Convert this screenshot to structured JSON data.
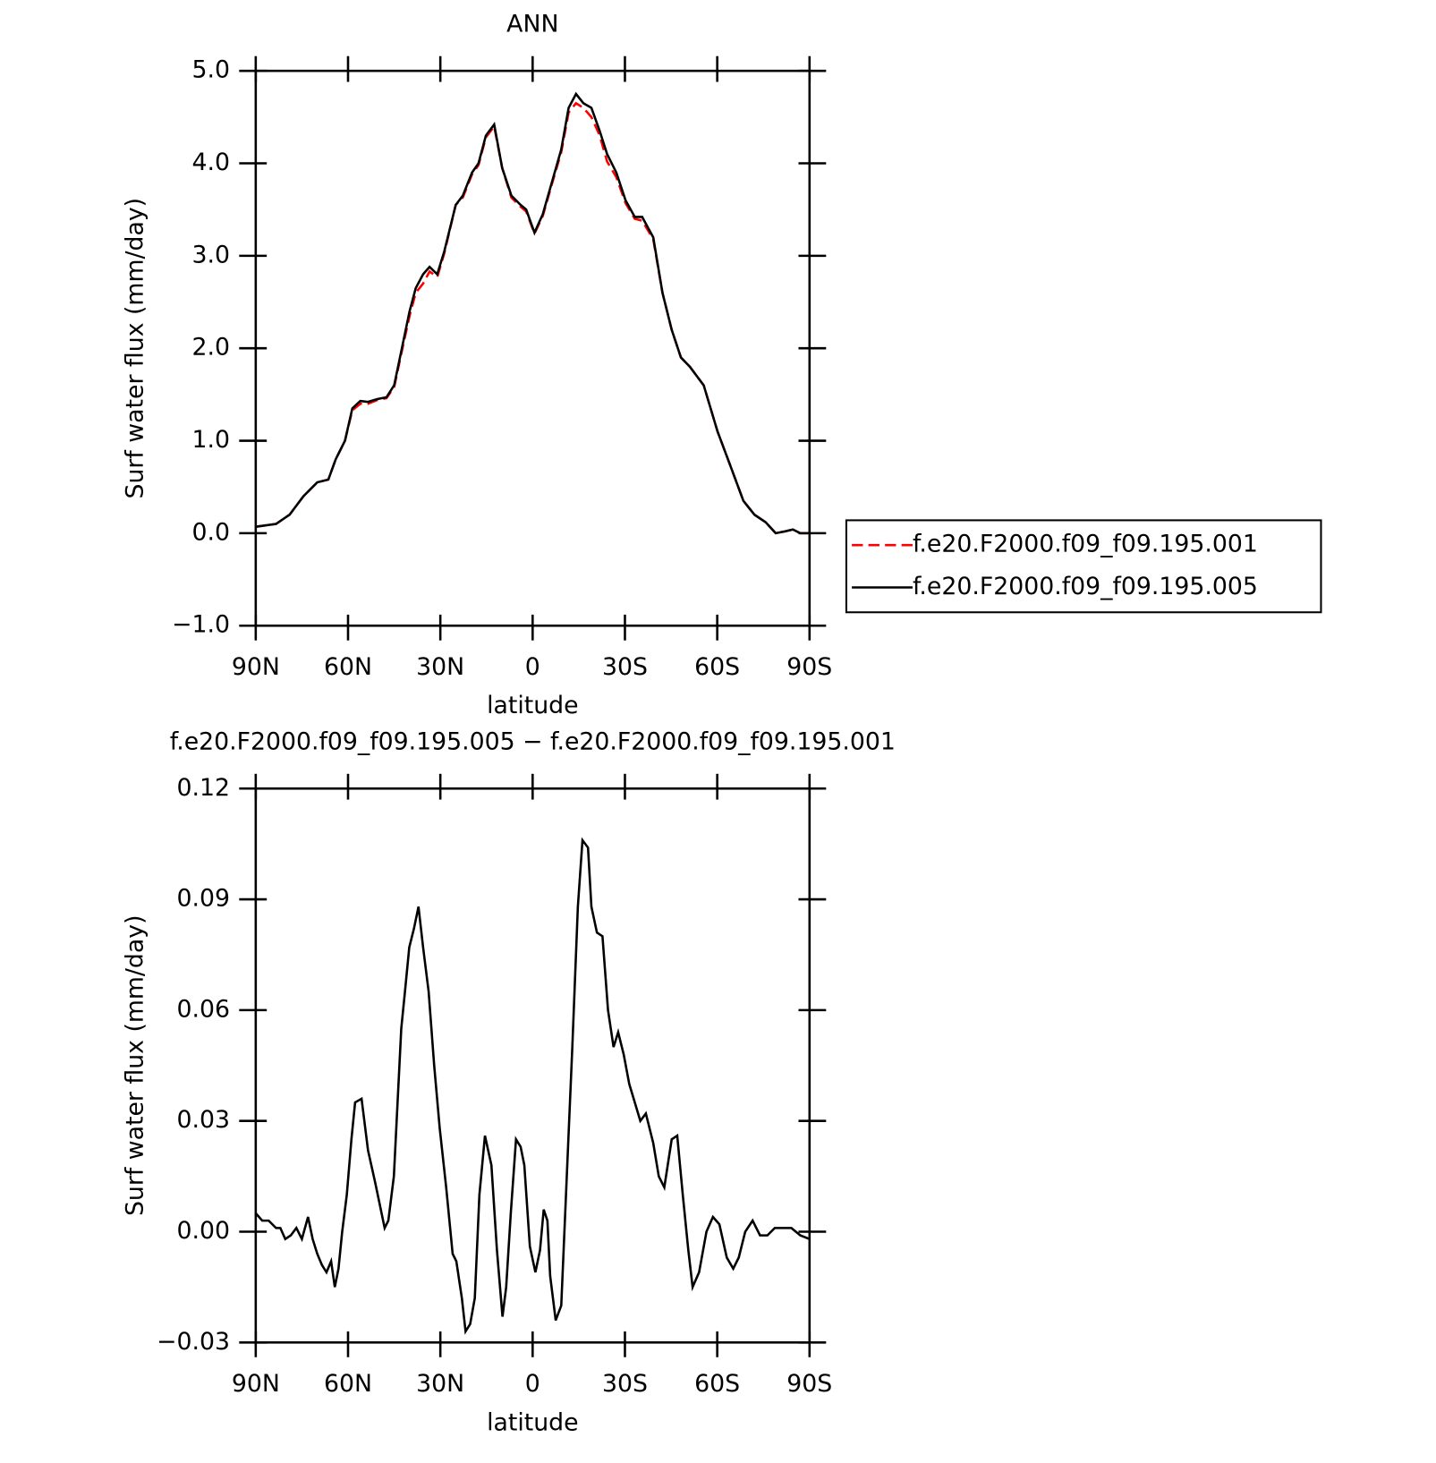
{
  "chart_data": [
    {
      "type": "line",
      "title": "ANN",
      "xlabel": "latitude",
      "ylabel": "Surf water flux (mm/day)",
      "x": [
        90,
        83.4,
        79,
        74.5,
        70,
        66.4,
        64,
        61,
        58.6,
        56,
        53.5,
        50.5,
        47.5,
        45,
        42.5,
        40,
        38,
        35.6,
        33.5,
        31,
        28.7,
        25,
        22.7,
        19.7,
        17.6,
        15.2,
        12.5,
        9.9,
        6.9,
        3.9,
        2.1,
        -0.6,
        -3.3,
        -6.3,
        -9.3,
        -11.7,
        -14.1,
        -16.5,
        -19.1,
        -21.8,
        -24.2,
        -27.2,
        -30.2,
        -33.2,
        -35.6,
        -39.2,
        -42.2,
        -45.2,
        -48.2,
        -51.1,
        -55.6,
        -60.1,
        -64.6,
        -68.5,
        -72.1,
        -75.7,
        -79,
        -82,
        -84.6,
        -87,
        -90
      ],
      "series": [
        {
          "name": "f.e20.F2000.f09_f09.195.001",
          "color": "#ff0000",
          "dash": "dashed",
          "values": [
            0.07,
            0.1,
            0.2,
            0.4,
            0.55,
            0.58,
            0.8,
            1.0,
            1.33,
            1.4,
            1.4,
            1.44,
            1.46,
            1.58,
            1.97,
            2.35,
            2.6,
            2.7,
            2.83,
            2.77,
            3.03,
            3.55,
            3.63,
            3.88,
            3.98,
            4.28,
            4.4,
            3.95,
            3.63,
            3.53,
            3.48,
            3.24,
            3.43,
            3.78,
            4.12,
            4.55,
            4.65,
            4.6,
            4.5,
            4.3,
            4.02,
            3.85,
            3.57,
            3.4,
            3.38,
            3.18,
            2.6,
            2.2,
            1.9,
            1.8,
            1.6,
            1.1,
            0.7,
            0.35,
            0.2,
            0.12,
            0.0,
            0.02,
            0.04,
            0.0,
            0.0
          ]
        },
        {
          "name": "f.e20.F2000.f09_f09.195.005",
          "color": "#000000",
          "dash": "solid",
          "values": [
            0.07,
            0.1,
            0.2,
            0.4,
            0.55,
            0.58,
            0.8,
            1.0,
            1.35,
            1.43,
            1.42,
            1.45,
            1.47,
            1.6,
            2.0,
            2.4,
            2.65,
            2.8,
            2.88,
            2.8,
            3.05,
            3.55,
            3.65,
            3.9,
            4.0,
            4.3,
            4.42,
            3.95,
            3.65,
            3.55,
            3.5,
            3.25,
            3.45,
            3.8,
            4.15,
            4.6,
            4.75,
            4.65,
            4.6,
            4.35,
            4.1,
            3.9,
            3.6,
            3.42,
            3.42,
            3.2,
            2.6,
            2.2,
            1.9,
            1.8,
            1.6,
            1.1,
            0.7,
            0.35,
            0.2,
            0.12,
            0.0,
            0.02,
            0.04,
            0.0,
            0.0
          ]
        }
      ],
      "xlim": [
        90,
        -90
      ],
      "xticks": [
        {
          "value": 90,
          "label": "90N"
        },
        {
          "value": 60,
          "label": "60N"
        },
        {
          "value": 30,
          "label": "30N"
        },
        0,
        {
          "value": -30,
          "label": "30S"
        },
        {
          "value": -60,
          "label": "60S"
        },
        {
          "value": -90,
          "label": "90S"
        }
      ],
      "ylim": [
        -1,
        5
      ],
      "yticks": [
        {
          "value": -1,
          "label": "−1.0"
        },
        {
          "value": 0,
          "label": "0.0"
        },
        {
          "value": 1,
          "label": "1.0"
        },
        {
          "value": 2,
          "label": "2.0"
        },
        {
          "value": 3,
          "label": "3.0"
        },
        {
          "value": 4,
          "label": "4.0"
        },
        {
          "value": 5,
          "label": "5.0"
        }
      ],
      "legend": "right"
    },
    {
      "type": "line",
      "title": "f.e20.F2000.f09_f09.195.005 − f.e20.F2000.f09_f09.195.001",
      "xlabel": "latitude",
      "ylabel": "Surf water flux (mm/day)",
      "x": [
        90,
        87.9,
        85.8,
        83.4,
        82,
        80.4,
        78.6,
        76.8,
        75,
        73,
        71.5,
        70,
        68.5,
        67,
        65.5,
        64.3,
        63.1,
        61.9,
        60.4,
        58.9,
        57.7,
        55.6,
        53.5,
        51.1,
        48.1,
        46.9,
        45.1,
        42.7,
        41.5,
        40.1,
        38.6,
        37.1,
        35.6,
        33.8,
        32,
        30.2,
        28.1,
        26,
        24.8,
        23,
        21.8,
        20.3,
        18.8,
        17.3,
        15.5,
        13.4,
        11.6,
        9.8,
        8.6,
        7.1,
        5.4,
        3.9,
        2.7,
        0.9,
        -0.9,
        -2.4,
        -3.6,
        -4.8,
        -5.7,
        -7.5,
        -9.3,
        -11.1,
        -12.9,
        -14.7,
        -16.2,
        -18,
        -19.1,
        -20.9,
        -22.7,
        -24.5,
        -26.3,
        -27.8,
        -29.6,
        -31.4,
        -33.2,
        -35,
        -36.8,
        -39.2,
        -41,
        -42.8,
        -45.2,
        -47,
        -48.8,
        -50.6,
        -52,
        -54.1,
        -56.5,
        -58.6,
        -60.7,
        -63.1,
        -65.2,
        -67,
        -69.1,
        -71.5,
        -73.9,
        -76.3,
        -78.7,
        -81.1,
        -84.1,
        -87,
        -90
      ],
      "series": [
        {
          "color": "#000000",
          "dash": "solid",
          "values": [
            0.005,
            0.003,
            0.003,
            0.001,
            0.001,
            -0.002,
            -0.001,
            0.001,
            -0.002,
            0.004,
            -0.002,
            -0.006,
            -0.009,
            -0.011,
            -0.008,
            -0.015,
            -0.01,
            0.0,
            0.01,
            0.025,
            0.035,
            0.036,
            0.022,
            0.013,
            0.001,
            0.003,
            0.015,
            0.055,
            0.065,
            0.077,
            0.082,
            0.088,
            0.077,
            0.065,
            0.045,
            0.028,
            0.012,
            -0.006,
            -0.008,
            -0.018,
            -0.027,
            -0.025,
            -0.018,
            0.01,
            0.026,
            0.018,
            -0.005,
            -0.023,
            -0.015,
            0.005,
            0.025,
            0.023,
            0.018,
            -0.004,
            -0.011,
            -0.005,
            0.006,
            0.003,
            -0.012,
            -0.024,
            -0.02,
            0.015,
            0.05,
            0.088,
            0.106,
            0.104,
            0.088,
            0.081,
            0.08,
            0.06,
            0.05,
            0.054,
            0.048,
            0.04,
            0.035,
            0.03,
            0.032,
            0.024,
            0.015,
            0.012,
            0.025,
            0.026,
            0.01,
            -0.005,
            -0.015,
            -0.011,
            0.0,
            0.004,
            0.002,
            -0.007,
            -0.01,
            -0.007,
            0.0,
            0.003,
            -0.001,
            -0.001,
            0.001,
            0.001,
            0.001,
            -0.001,
            -0.002
          ]
        }
      ],
      "xlim": [
        90,
        -90
      ],
      "xticks": [
        {
          "value": 90,
          "label": "90N"
        },
        {
          "value": 60,
          "label": "60N"
        },
        {
          "value": 30,
          "label": "30N"
        },
        0,
        {
          "value": -30,
          "label": "30S"
        },
        {
          "value": -60,
          "label": "60S"
        },
        {
          "value": -90,
          "label": "90S"
        }
      ],
      "ylim": [
        -0.03,
        0.12
      ],
      "yticks": [
        {
          "value": -0.03,
          "label": "−0.03"
        },
        {
          "value": 0,
          "label": "0.00"
        },
        0.03,
        0.06,
        0.09,
        0.12
      ]
    }
  ]
}
